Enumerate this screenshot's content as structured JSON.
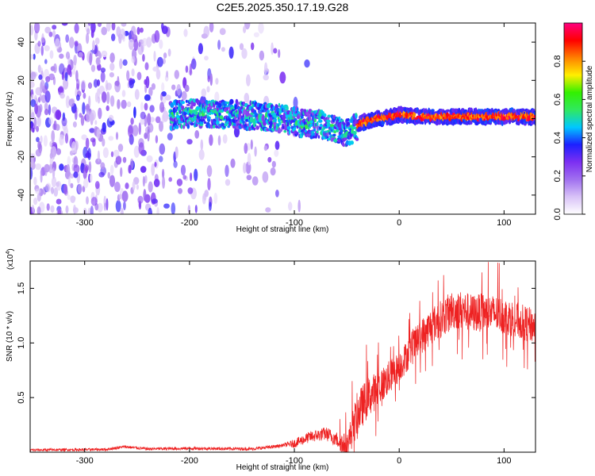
{
  "title": "C2E5.2025.350.17.19.G28",
  "colors": {
    "snr_line": "#ee2222",
    "spectrogram_background": "#ffffff",
    "axis": "#000000",
    "colormap_stops": [
      "#ffffff",
      "#d8c2f7",
      "#a070ef",
      "#7c2ff2",
      "#1c20ff",
      "#00c8ff",
      "#30e860",
      "#32f000",
      "#ffef00",
      "#ff8000",
      "#ff0000",
      "#ff0080"
    ]
  },
  "chart_data": [
    {
      "type": "heatmap",
      "name": "spectrogram",
      "title": "C2E5.2025.350.17.19.G28",
      "xlabel": "Height of straight line (km)",
      "ylabel": "Frequency (Hz)",
      "xlim": [
        -352,
        130
      ],
      "ylim": [
        -50,
        50
      ],
      "xticks": [
        -300,
        -200,
        -100,
        0,
        100
      ],
      "xtick_labels": [
        "-300",
        "-200",
        "-100",
        "0",
        "100"
      ],
      "yticks": [
        -40,
        -20,
        0,
        20,
        40
      ],
      "ytick_labels": [
        "-40",
        "-20",
        "0",
        "20",
        "40"
      ],
      "colorbar": {
        "label": "Normalized spectral amplitude",
        "range": [
          0.0,
          1.0
        ],
        "ticks": [
          0.0,
          0.2,
          0.4,
          0.6,
          0.8
        ],
        "tick_labels": [
          "0.0",
          "0.2",
          "0.4",
          "0.6",
          "0.8"
        ]
      },
      "ridge": {
        "x": [
          -215,
          -190,
          -160,
          -130,
          -110,
          -90,
          -75,
          -62,
          -52,
          -45,
          -35,
          -20,
          -5,
          0,
          20,
          50,
          80,
          110,
          130
        ],
        "freq": [
          2,
          3,
          2,
          1,
          0,
          -3,
          -3,
          -5,
          -8,
          -6,
          -2,
          0,
          1,
          2,
          1,
          1,
          1,
          1,
          1
        ]
      },
      "noise_region_x": [
        -352,
        -150
      ]
    },
    {
      "type": "line",
      "name": "snr",
      "xlabel": "Height of straight line (km)",
      "ylabel": "SNR (10 * v/v)",
      "multiplier_label": "(x10",
      "multiplier_exponent": "4",
      "xlim": [
        -352,
        130
      ],
      "ylim": [
        0,
        1.75
      ],
      "xticks": [
        -300,
        -200,
        -100,
        0,
        100
      ],
      "xtick_labels": [
        "-300",
        "-200",
        "-100",
        "0",
        "100"
      ],
      "yticks": [
        0.5,
        1.0,
        1.5
      ],
      "ytick_labels": [
        "0.5",
        "1.0",
        "1.5"
      ],
      "trend": {
        "x": [
          -352,
          -280,
          -262,
          -240,
          -200,
          -140,
          -120,
          -100,
          -85,
          -70,
          -60,
          -50,
          -45,
          -40,
          -30,
          -20,
          -10,
          0,
          10,
          20,
          30,
          40,
          50,
          60,
          70,
          80,
          90,
          100,
          110,
          120,
          130
        ],
        "y": [
          0.02,
          0.025,
          0.05,
          0.03,
          0.035,
          0.03,
          0.05,
          0.08,
          0.14,
          0.17,
          0.12,
          0.05,
          0.2,
          0.35,
          0.5,
          0.58,
          0.68,
          0.78,
          0.92,
          1.05,
          1.15,
          1.22,
          1.3,
          1.3,
          1.27,
          1.28,
          1.27,
          1.25,
          1.22,
          1.18,
          1.15
        ]
      },
      "noise_amplitude": {
        "x": [
          -352,
          -110,
          -100,
          -60,
          -50,
          -40,
          -20,
          0,
          30,
          60,
          130
        ],
        "y": [
          0.012,
          0.015,
          0.04,
          0.07,
          0.12,
          0.2,
          0.17,
          0.14,
          0.17,
          0.18,
          0.16
        ]
      }
    }
  ]
}
